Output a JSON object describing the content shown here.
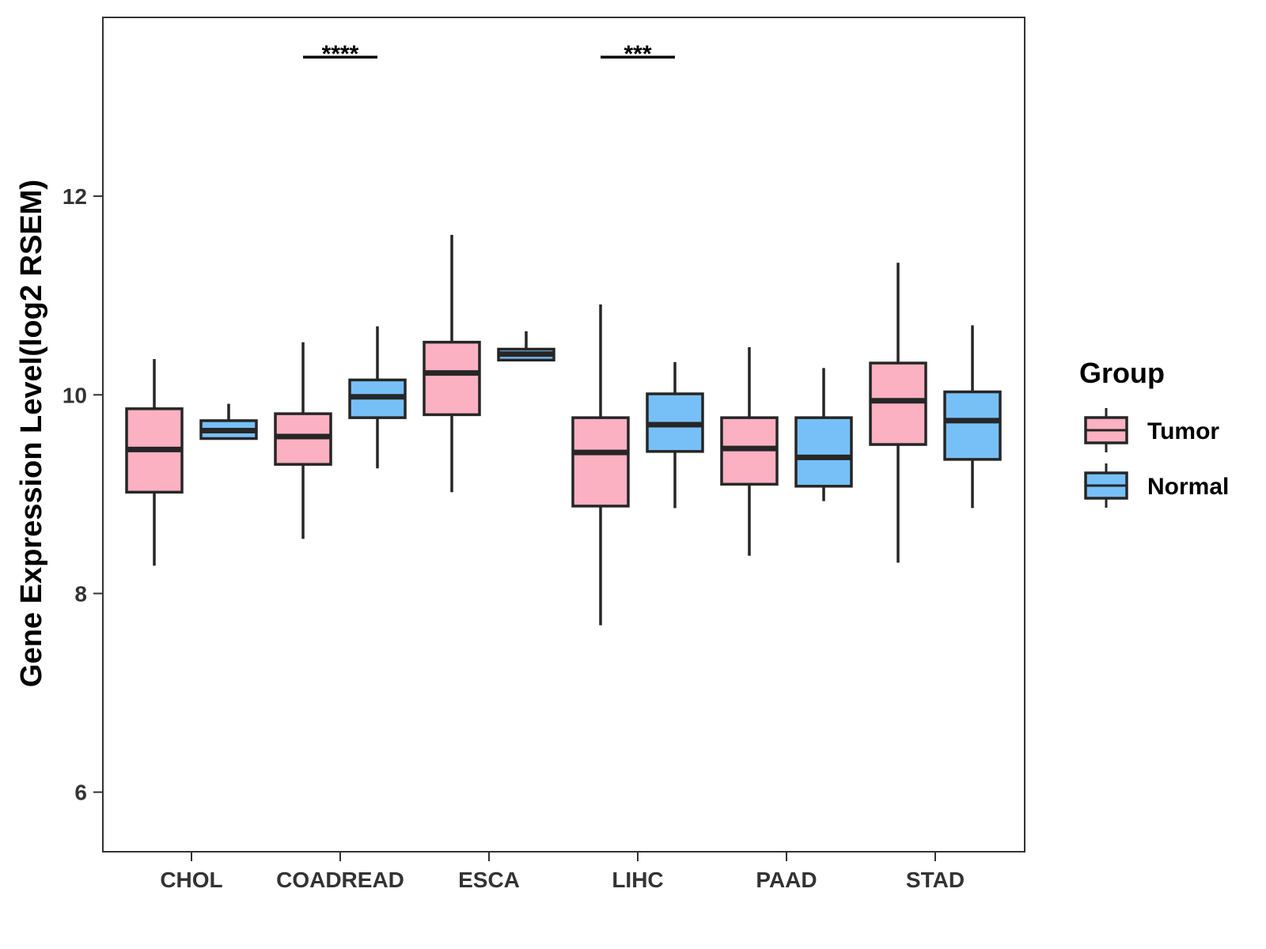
{
  "chart_data": {
    "type": "boxplot",
    "title": "",
    "xlabel": "",
    "ylabel": "Gene Expression Level(log2 RSEM)",
    "ylim": [
      5.4,
      13.8
    ],
    "yticks": [
      6,
      8,
      10,
      12
    ],
    "ytick_labels": [
      "6",
      "8",
      "10",
      "12"
    ],
    "categories": [
      "CHOL",
      "COADREAD",
      "ESCA",
      "LIHC",
      "PAAD",
      "STAD"
    ],
    "legend": {
      "title": "Group",
      "position": "right",
      "entries": [
        {
          "name": "Tumor",
          "color": "#FBB1C2"
        },
        {
          "name": "Normal",
          "color": "#77C0F7"
        }
      ]
    },
    "series": [
      {
        "name": "Tumor",
        "color": "#FBB1C2",
        "boxes": [
          {
            "category": "CHOL",
            "min": 8.28,
            "q1": 9.02,
            "median": 9.45,
            "q3": 9.86,
            "max": 10.36
          },
          {
            "category": "COADREAD",
            "min": 8.55,
            "q1": 9.3,
            "median": 9.58,
            "q3": 9.81,
            "max": 10.53
          },
          {
            "category": "ESCA",
            "min": 9.02,
            "q1": 9.8,
            "median": 10.22,
            "q3": 10.53,
            "max": 11.61
          },
          {
            "category": "LIHC",
            "min": 7.68,
            "q1": 8.88,
            "median": 9.42,
            "q3": 9.77,
            "max": 10.91
          },
          {
            "category": "PAAD",
            "min": 8.38,
            "q1": 9.1,
            "median": 9.46,
            "q3": 9.77,
            "max": 10.48
          },
          {
            "category": "STAD",
            "min": 8.31,
            "q1": 9.5,
            "median": 9.94,
            "q3": 10.32,
            "max": 11.33
          }
        ]
      },
      {
        "name": "Normal",
        "color": "#77C0F7",
        "boxes": [
          {
            "category": "CHOL",
            "min": 9.56,
            "q1": 9.56,
            "median": 9.64,
            "q3": 9.74,
            "max": 9.91
          },
          {
            "category": "COADREAD",
            "min": 9.26,
            "q1": 9.77,
            "median": 9.98,
            "q3": 10.15,
            "max": 10.69
          },
          {
            "category": "ESCA",
            "min": 10.35,
            "q1": 10.35,
            "median": 10.41,
            "q3": 10.46,
            "max": 10.64
          },
          {
            "category": "LIHC",
            "min": 8.86,
            "q1": 9.43,
            "median": 9.7,
            "q3": 10.01,
            "max": 10.33
          },
          {
            "category": "PAAD",
            "min": 8.93,
            "q1": 9.08,
            "median": 9.37,
            "q3": 9.77,
            "max": 10.27
          },
          {
            "category": "STAD",
            "min": 8.86,
            "q1": 9.35,
            "median": 9.74,
            "q3": 10.03,
            "max": 10.7
          }
        ]
      }
    ],
    "annotations": [
      {
        "category": "COADREAD",
        "text": "****",
        "y": 13.4
      },
      {
        "category": "LIHC",
        "text": "***",
        "y": 13.4
      }
    ]
  }
}
